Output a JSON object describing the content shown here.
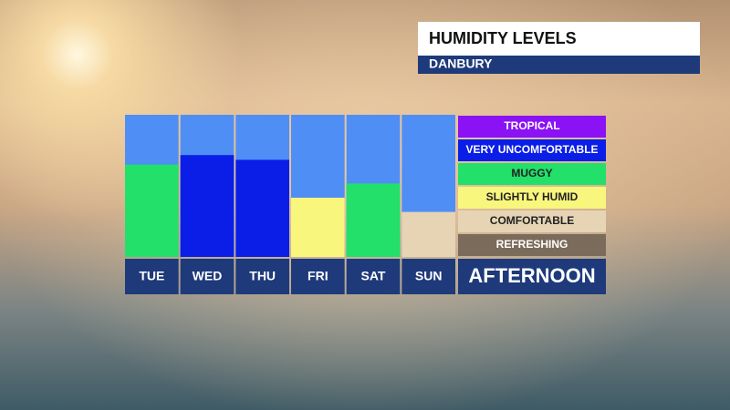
{
  "chart_data": {
    "type": "bar",
    "title": "HUMIDITY LEVELS",
    "subtitle": "DANBURY",
    "categories": [
      "TUE",
      "WED",
      "THU",
      "FRI",
      "SAT",
      "SUN"
    ],
    "values": [
      3.9,
      4.3,
      4.1,
      2.5,
      3.1,
      1.9
    ],
    "ylim": [
      0,
      6
    ],
    "period": "AFTERNOON",
    "background_color": "#4f8ef5",
    "levels": [
      {
        "name": "REFRESHING",
        "color": "#7b6b5a"
      },
      {
        "name": "COMFORTABLE",
        "color": "#e6d4b4"
      },
      {
        "name": "SLIGHTLY HUMID",
        "color": "#f8f67c"
      },
      {
        "name": "MUGGY",
        "color": "#22e06a"
      },
      {
        "name": "VERY UNCOMFORTABLE",
        "color": "#0a1ee8"
      },
      {
        "name": "TROPICAL",
        "color": "#8a12f5"
      }
    ]
  }
}
